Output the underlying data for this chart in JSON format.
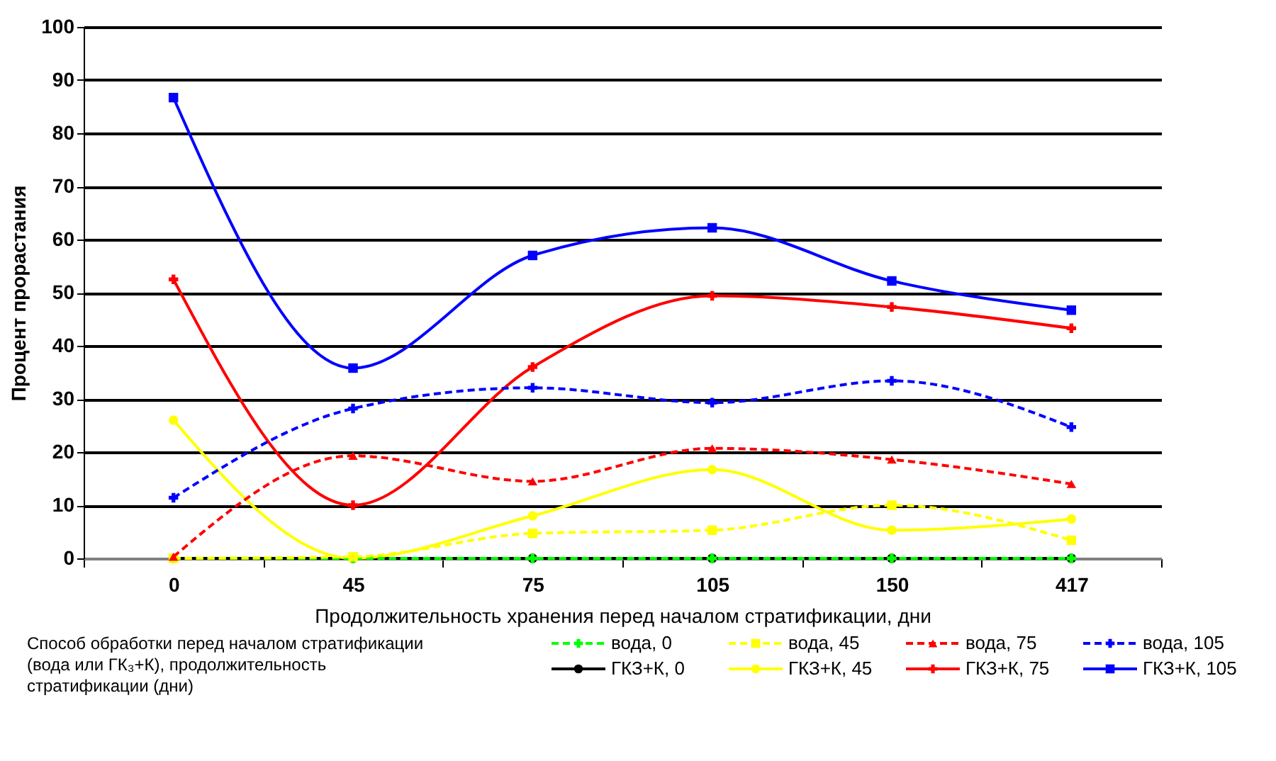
{
  "chart_data": {
    "type": "line",
    "xlabel": "Продолжительность хранения перед началом стратификации, дни",
    "ylabel": "Процент  прорастания",
    "legend_title": "Способ обработки перед началом стратификации (вода или ГК₃+К), продолжительность стратификации (дни)",
    "categories": [
      "0",
      "45",
      "75",
      "105",
      "150",
      "417"
    ],
    "ylim": [
      0,
      100
    ],
    "yticks": [
      0,
      10,
      20,
      30,
      40,
      50,
      60,
      70,
      80,
      90,
      100
    ],
    "grid": "y",
    "legend": "bottom",
    "series": [
      {
        "name": "вода, 0",
        "color": "#00ff00",
        "marker": "cross",
        "line_style": "dashed",
        "values": [
          0,
          0,
          0,
          0,
          0,
          0
        ]
      },
      {
        "name": "ГКЗ+К, 0",
        "color": "#000000",
        "marker": "circle",
        "line_style": "solid",
        "values": [
          0,
          0,
          0,
          0,
          0,
          0
        ]
      },
      {
        "name": "вода, 45",
        "color": "#ffff00",
        "marker": "square",
        "line_style": "dashed",
        "values": [
          0,
          0.3,
          4.7,
          5.3,
          10,
          3.4
        ]
      },
      {
        "name": "ГКЗ+К, 45",
        "color": "#ffff00",
        "marker": "circle",
        "line_style": "solid",
        "values": [
          26,
          0,
          8,
          16.7,
          5.3,
          7.4
        ]
      },
      {
        "name": "вода, 75",
        "color": "#ff0000",
        "marker": "triangle",
        "line_style": "dashed",
        "values": [
          0.3,
          19.3,
          14.5,
          20.7,
          18.6,
          14
        ]
      },
      {
        "name": "ГКЗ+К, 75",
        "color": "#ff0000",
        "marker": "cross",
        "line_style": "solid",
        "values": [
          52.5,
          10,
          36,
          49.4,
          47.3,
          43.3
        ]
      },
      {
        "name": "вода, 105",
        "color": "#0000ff",
        "marker": "cross",
        "line_style": "dashed",
        "values": [
          11.4,
          28.2,
          32.1,
          29.3,
          33.4,
          24.7
        ]
      },
      {
        "name": "ГКЗ+К, 105",
        "color": "#0000ff",
        "marker": "square",
        "line_style": "solid",
        "values": [
          86.7,
          35.8,
          57,
          62.2,
          52.2,
          46.7
        ]
      }
    ]
  }
}
